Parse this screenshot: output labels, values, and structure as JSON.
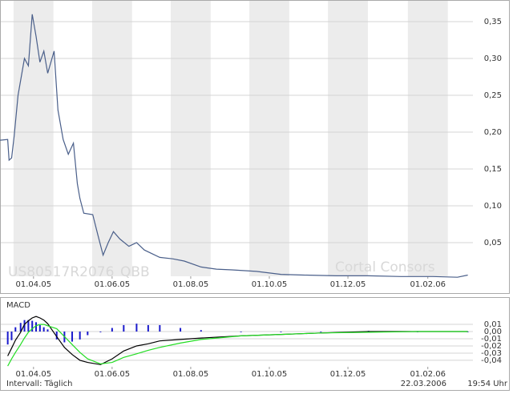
{
  "chart_data": [
    {
      "type": "line",
      "annotations": [
        "US80517R2076",
        "QBB",
        "Cortal Consors"
      ],
      "xlim": [
        "2005-03-06",
        "2006-03-08"
      ],
      "xticks": [
        {
          "value": "2005-04-01",
          "label": "01.04.05"
        },
        {
          "value": "2005-06-01",
          "label": "01.06.05"
        },
        {
          "value": "2005-08-01",
          "label": "01.08.05"
        },
        {
          "value": "2005-10-01",
          "label": "01.10.05"
        },
        {
          "value": "2005-12-01",
          "label": "01.12.05"
        },
        {
          "value": "2006-02-01",
          "label": "01.02.06"
        }
      ],
      "ylim": [
        -0.006,
        0.38
      ],
      "yticks": [
        {
          "value": 0.05,
          "label": "0,05"
        },
        {
          "value": 0.1,
          "label": "0,10"
        },
        {
          "value": 0.15,
          "label": "0,15"
        },
        {
          "value": 0.2,
          "label": "0,20"
        },
        {
          "value": 0.25,
          "label": "0,25"
        },
        {
          "value": 0.3,
          "label": "0,30"
        },
        {
          "value": 0.35,
          "label": "0,35"
        }
      ],
      "grid": true,
      "x": [
        "2005-03-06",
        "2005-03-12",
        "2005-03-13",
        "2005-03-15",
        "2005-03-17",
        "2005-03-20",
        "2005-03-22",
        "2005-03-25",
        "2005-03-28",
        "2005-03-31",
        "2005-04-03",
        "2005-04-06",
        "2005-04-09",
        "2005-04-12",
        "2005-04-17",
        "2005-04-20",
        "2005-04-24",
        "2005-04-28",
        "2005-05-02",
        "2005-05-05",
        "2005-05-07",
        "2005-05-10",
        "2005-05-17",
        "2005-05-21",
        "2005-05-25",
        "2005-05-29",
        "2005-06-02",
        "2005-06-07",
        "2005-06-14",
        "2005-06-20",
        "2005-06-26",
        "2005-07-02",
        "2005-07-08",
        "2005-07-18",
        "2005-07-27",
        "2005-08-09",
        "2005-08-21",
        "2005-09-02",
        "2005-09-21",
        "2005-10-10",
        "2005-10-28",
        "2005-11-22",
        "2005-12-17",
        "2006-01-11",
        "2006-02-05",
        "2006-02-24",
        "2006-03-04"
      ],
      "series": [
        {
          "color": "#4a5f8a",
          "values": [
            0.189,
            0.19,
            0.162,
            0.165,
            0.195,
            0.25,
            0.27,
            0.3,
            0.29,
            0.36,
            0.33,
            0.295,
            0.31,
            0.28,
            0.31,
            0.23,
            0.19,
            0.17,
            0.185,
            0.13,
            0.11,
            0.09,
            0.088,
            0.06,
            0.033,
            0.05,
            0.065,
            0.055,
            0.045,
            0.05,
            0.04,
            0.035,
            0.03,
            0.028,
            0.025,
            0.017,
            0.014,
            0.013,
            0.011,
            0.007,
            0.006,
            0.005,
            0.005,
            0.004,
            0.004,
            0.003,
            0.006
          ]
        }
      ]
    },
    {
      "type": "macd",
      "title": "MACD",
      "xlim": [
        "2005-03-06",
        "2006-03-08"
      ],
      "xticks": [
        {
          "value": "2005-04-01",
          "label": "01.04.05"
        },
        {
          "value": "2005-06-01",
          "label": "01.06.05"
        },
        {
          "value": "2005-08-01",
          "label": "01.08.05"
        },
        {
          "value": "2005-10-01",
          "label": "01.10.05"
        },
        {
          "value": "2005-12-01",
          "label": "01.12.05"
        },
        {
          "value": "2006-02-01",
          "label": "01.02.06"
        }
      ],
      "ylim": [
        -0.049,
        0.029
      ],
      "yticks": [
        {
          "value": 0.01,
          "label": "0,01"
        },
        {
          "value": 0,
          "label": "0,00"
        },
        {
          "value": -0.01,
          "label": "-0,01"
        },
        {
          "value": -0.02,
          "label": "-0,02"
        },
        {
          "value": -0.03,
          "label": "-0,03"
        },
        {
          "value": -0.04,
          "label": "-0,04"
        }
      ],
      "grid": true,
      "x": [
        "2005-03-12",
        "2005-03-15",
        "2005-03-18",
        "2005-03-22",
        "2005-03-25",
        "2005-03-28",
        "2005-03-31",
        "2005-04-03",
        "2005-04-06",
        "2005-04-09",
        "2005-04-12",
        "2005-04-19",
        "2005-04-25",
        "2005-05-01",
        "2005-05-07",
        "2005-05-13",
        "2005-05-23",
        "2005-06-01",
        "2005-06-10",
        "2005-06-20",
        "2005-06-29",
        "2005-07-08",
        "2005-07-24",
        "2005-08-09",
        "2005-09-09",
        "2005-10-10",
        "2005-11-10",
        "2005-12-17",
        "2006-01-24",
        "2006-03-04"
      ],
      "series": [
        {
          "kind": "histogram",
          "color": "#1a1acc",
          "values": [
            -0.018,
            -0.012,
            0.006,
            0.012,
            0.016,
            0.016,
            0.015,
            0.013,
            0.009,
            0.006,
            0.003,
            -0.011,
            -0.015,
            -0.014,
            -0.011,
            -0.005,
            -0.001,
            0.005,
            0.009,
            0.011,
            0.009,
            0.009,
            0.005,
            0.002,
            0,
            0,
            0,
            0.001,
            0,
            0
          ]
        },
        {
          "kind": "line",
          "color": "#000000",
          "values": [
            -0.034,
            -0.023,
            -0.012,
            -0.001,
            0.01,
            0.015,
            0.019,
            0.021,
            0.019,
            0.016,
            0.011,
            -0.007,
            -0.022,
            -0.032,
            -0.04,
            -0.043,
            -0.046,
            -0.038,
            -0.027,
            -0.02,
            -0.017,
            -0.013,
            -0.011,
            -0.009,
            -0.006,
            -0.004,
            -0.002,
            0,
            0,
            0
          ]
        },
        {
          "kind": "line",
          "color": "#22dd22",
          "values": [
            -0.048,
            -0.038,
            -0.029,
            -0.018,
            -0.009,
            -0.001,
            0.004,
            0.008,
            0.01,
            0.01,
            0.008,
            0.004,
            -0.007,
            -0.018,
            -0.029,
            -0.038,
            -0.045,
            -0.043,
            -0.036,
            -0.031,
            -0.026,
            -0.022,
            -0.016,
            -0.011,
            -0.006,
            -0.004,
            -0.002,
            -0.001,
            0,
            0
          ]
        }
      ]
    }
  ],
  "footer": {
    "interval": "Intervall: Täglich",
    "date": "22.03.2006",
    "time": "19:54 Uhr"
  }
}
